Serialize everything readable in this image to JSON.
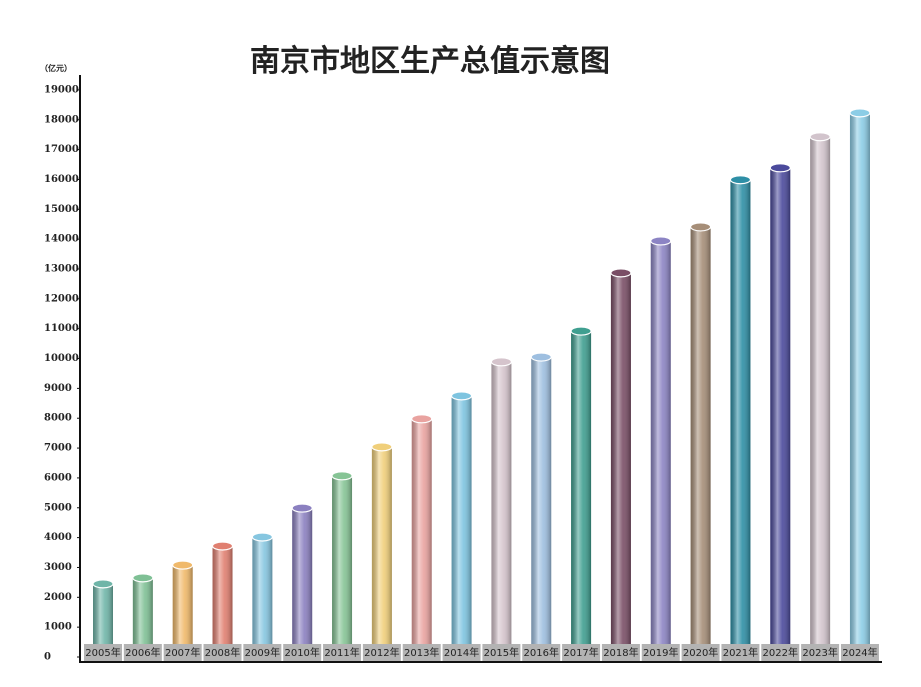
{
  "chart_data": {
    "type": "bar",
    "title": "南京市地区生产总值示意图",
    "unit": "（亿元）",
    "categories": [
      "2005年",
      "2006年",
      "2007年",
      "2008年",
      "2009年",
      "2010年",
      "2011年",
      "2012年",
      "2013年",
      "2014年",
      "2015年",
      "2016年",
      "2017年",
      "2018年",
      "2019年",
      "2020年",
      "2021年",
      "2022年",
      "2023年",
      "2024年"
    ],
    "values": [
      2450,
      2650,
      3080,
      3720,
      4020,
      4990,
      6070,
      7040,
      7980,
      8750,
      9890,
      10050,
      10920,
      12870,
      13940,
      14410,
      15990,
      16390,
      17430,
      18230
    ],
    "colors": [
      "#6fb5a8",
      "#7fc095",
      "#f0b96a",
      "#e07f70",
      "#86c6e0",
      "#8b80c0",
      "#86c495",
      "#f0cf7a",
      "#e9a3a0",
      "#7ec4e0",
      "#d5c4cc",
      "#9ebfe0",
      "#3f9f90",
      "#7a4e66",
      "#8c84c4",
      "#a68e78",
      "#2e8fa6",
      "#4b4a9c",
      "#d2c4cc",
      "#8ccde6"
    ],
    "ylim": [
      0,
      19500
    ],
    "yticks": [
      0,
      1000,
      2000,
      3000,
      4000,
      5000,
      6000,
      7000,
      8000,
      9000,
      10000,
      11000,
      12000,
      13000,
      14000,
      15000,
      16000,
      17000,
      18000,
      19000
    ]
  }
}
